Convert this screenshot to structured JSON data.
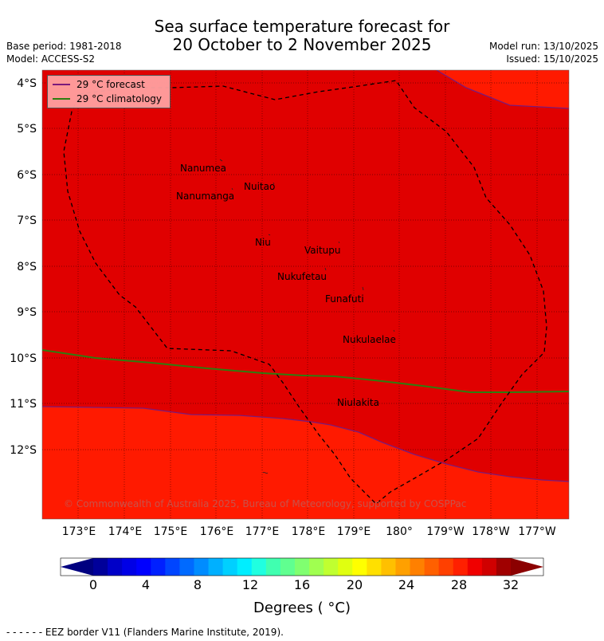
{
  "title_line1": "Sea surface temperature forecast for",
  "title_line2": "20 October to 2 November 2025",
  "base_period": "Base period: 1981-2018",
  "model": "Model: ACCESS-S2",
  "model_run": "Model run: 13/10/2025",
  "issued": "Issued: 15/10/2025",
  "legend": {
    "forecast": "29 °C  forecast",
    "climatology": "29 °C  climatology",
    "forecast_color": "#7b1a7b",
    "climatology_color": "#2e7d0f"
  },
  "copyright": "© Commonwealth of Australia 2025, Bureau of Meteorology, supported by COSPPac",
  "map": {
    "lat_labels": [
      "4°S",
      "5°S",
      "6°S",
      "7°S",
      "8°S",
      "9°S",
      "10°S",
      "11°S",
      "12°S"
    ],
    "lon_labels": [
      "173°E",
      "174°E",
      "175°E",
      "176°E",
      "177°E",
      "178°E",
      "179°E",
      "180°",
      "179°W",
      "178°W",
      "177°W"
    ],
    "places": [
      "Nanumea",
      "Nuitao",
      "Nanumanga",
      "Niu",
      "Vaitupu",
      "Nukufetau",
      "Funafuti",
      "Nukulaelae",
      "Niulakita"
    ],
    "colors": {
      "above_29": "#e00000",
      "below_29": "#ff1a00"
    }
  },
  "colorbar": {
    "ticks": [
      "0",
      "4",
      "8",
      "12",
      "16",
      "20",
      "24",
      "28",
      "32"
    ],
    "title": "Degrees ( °C)",
    "colors": [
      "#00009a",
      "#0000c8",
      "#0000e6",
      "#0000ff",
      "#0020ff",
      "#0045ff",
      "#006aff",
      "#008cff",
      "#00b0ff",
      "#00d0ff",
      "#00eeff",
      "#20ffe0",
      "#40ffb0",
      "#60ff90",
      "#80ff70",
      "#a0ff50",
      "#c0ff30",
      "#e0ff10",
      "#ffff00",
      "#ffe000",
      "#ffc000",
      "#ffa000",
      "#ff8000",
      "#ff6000",
      "#ff4000",
      "#ff2000",
      "#f00000",
      "#d00000",
      "#a00000"
    ],
    "left_extend_color": "#000080",
    "right_extend_color": "#8b0000"
  },
  "footer": "- -  - -  - - EEZ border V11 (Flanders Marine Institute, 2019)."
}
